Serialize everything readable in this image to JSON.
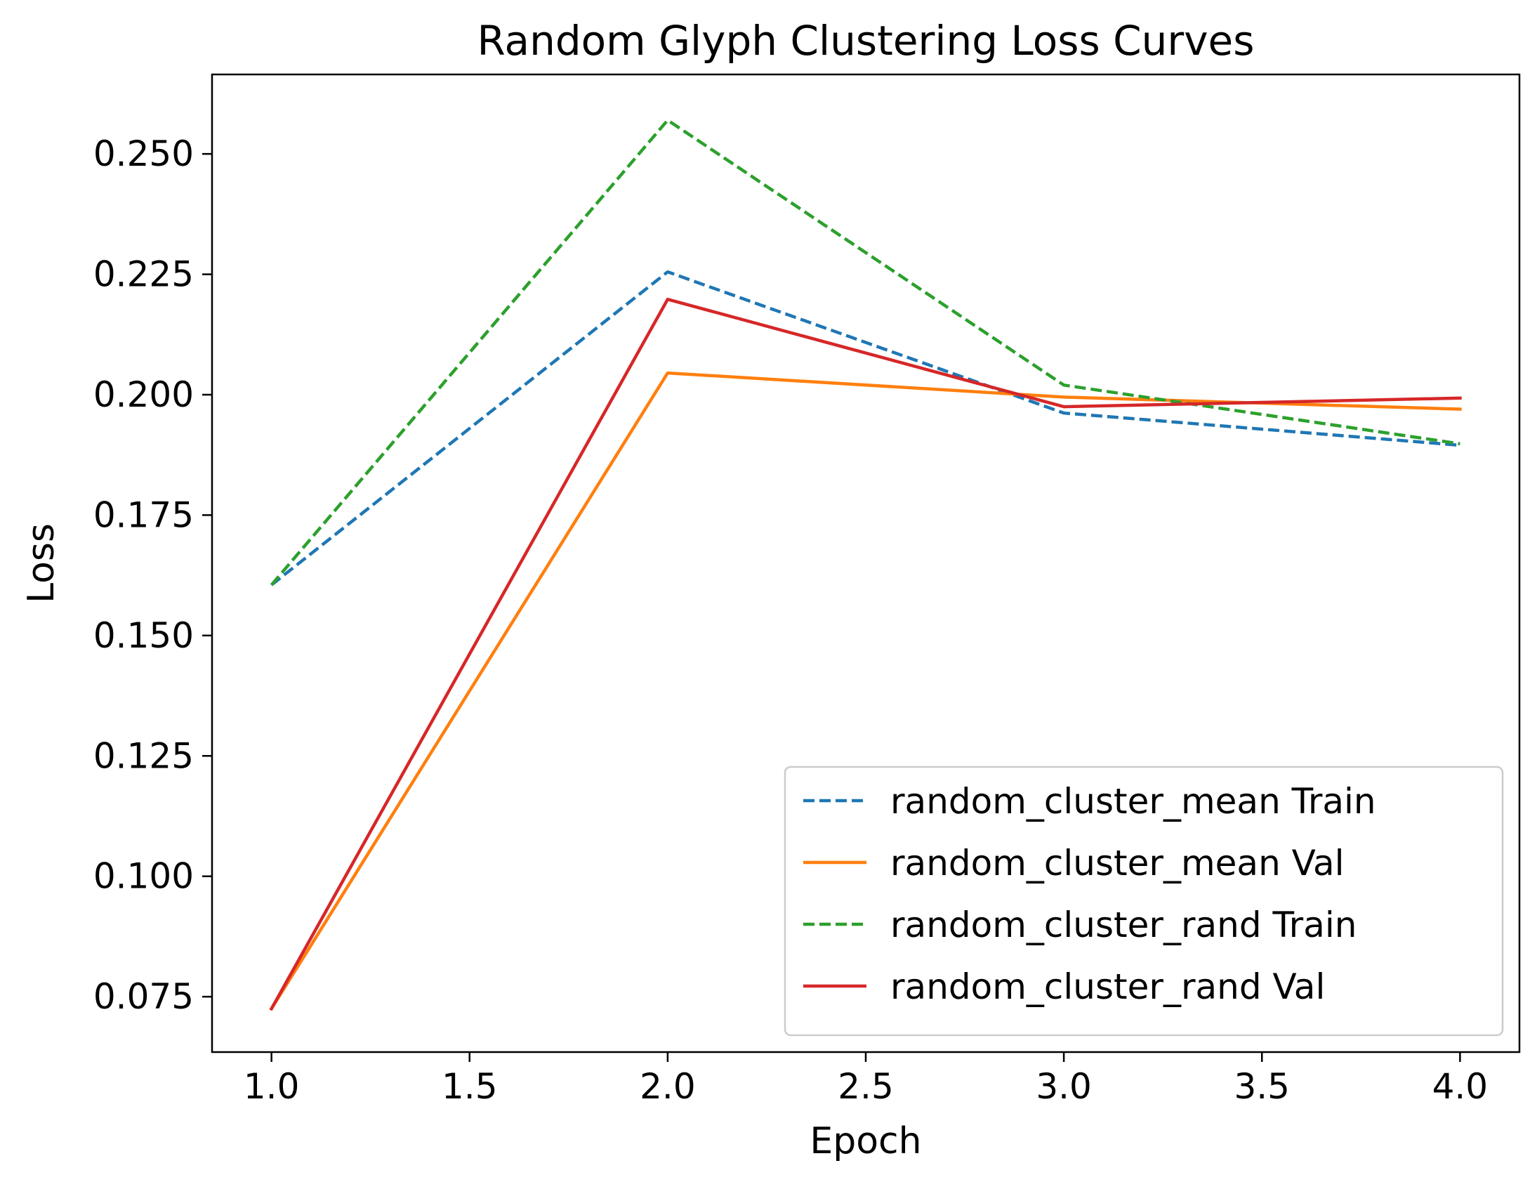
{
  "chart_data": {
    "type": "line",
    "title": "Random Glyph Clustering Loss Curves",
    "xlabel": "Epoch",
    "ylabel": "Loss",
    "xlim": [
      0.85,
      4.15
    ],
    "ylim": [
      0.0635,
      0.2665
    ],
    "xticks": [
      1.0,
      1.5,
      2.0,
      2.5,
      3.0,
      3.5,
      4.0
    ],
    "xtick_labels": [
      "1.0",
      "1.5",
      "2.0",
      "2.5",
      "3.0",
      "3.5",
      "4.0"
    ],
    "yticks": [
      0.075,
      0.1,
      0.125,
      0.15,
      0.175,
      0.2,
      0.225,
      0.25
    ],
    "ytick_labels": [
      "0.075",
      "0.100",
      "0.125",
      "0.150",
      "0.175",
      "0.200",
      "0.225",
      "0.250"
    ],
    "grid": false,
    "legend_position": "lower-right",
    "x": [
      1,
      2,
      3,
      4
    ],
    "series": [
      {
        "name": "random_cluster_mean Train",
        "values": [
          0.1605,
          0.2255,
          0.1962,
          0.1895
        ],
        "color": "#1f77b4",
        "dashed": true
      },
      {
        "name": "random_cluster_mean Val",
        "values": [
          0.0725,
          0.2045,
          0.1995,
          0.197
        ],
        "color": "#ff7f0e",
        "dashed": false
      },
      {
        "name": "random_cluster_rand Train",
        "values": [
          0.1605,
          0.257,
          0.202,
          0.1898
        ],
        "color": "#2ca02c",
        "dashed": true
      },
      {
        "name": "random_cluster_rand Val",
        "values": [
          0.0725,
          0.2198,
          0.1975,
          0.1993
        ],
        "color": "#d62728",
        "dashed": false
      }
    ]
  }
}
